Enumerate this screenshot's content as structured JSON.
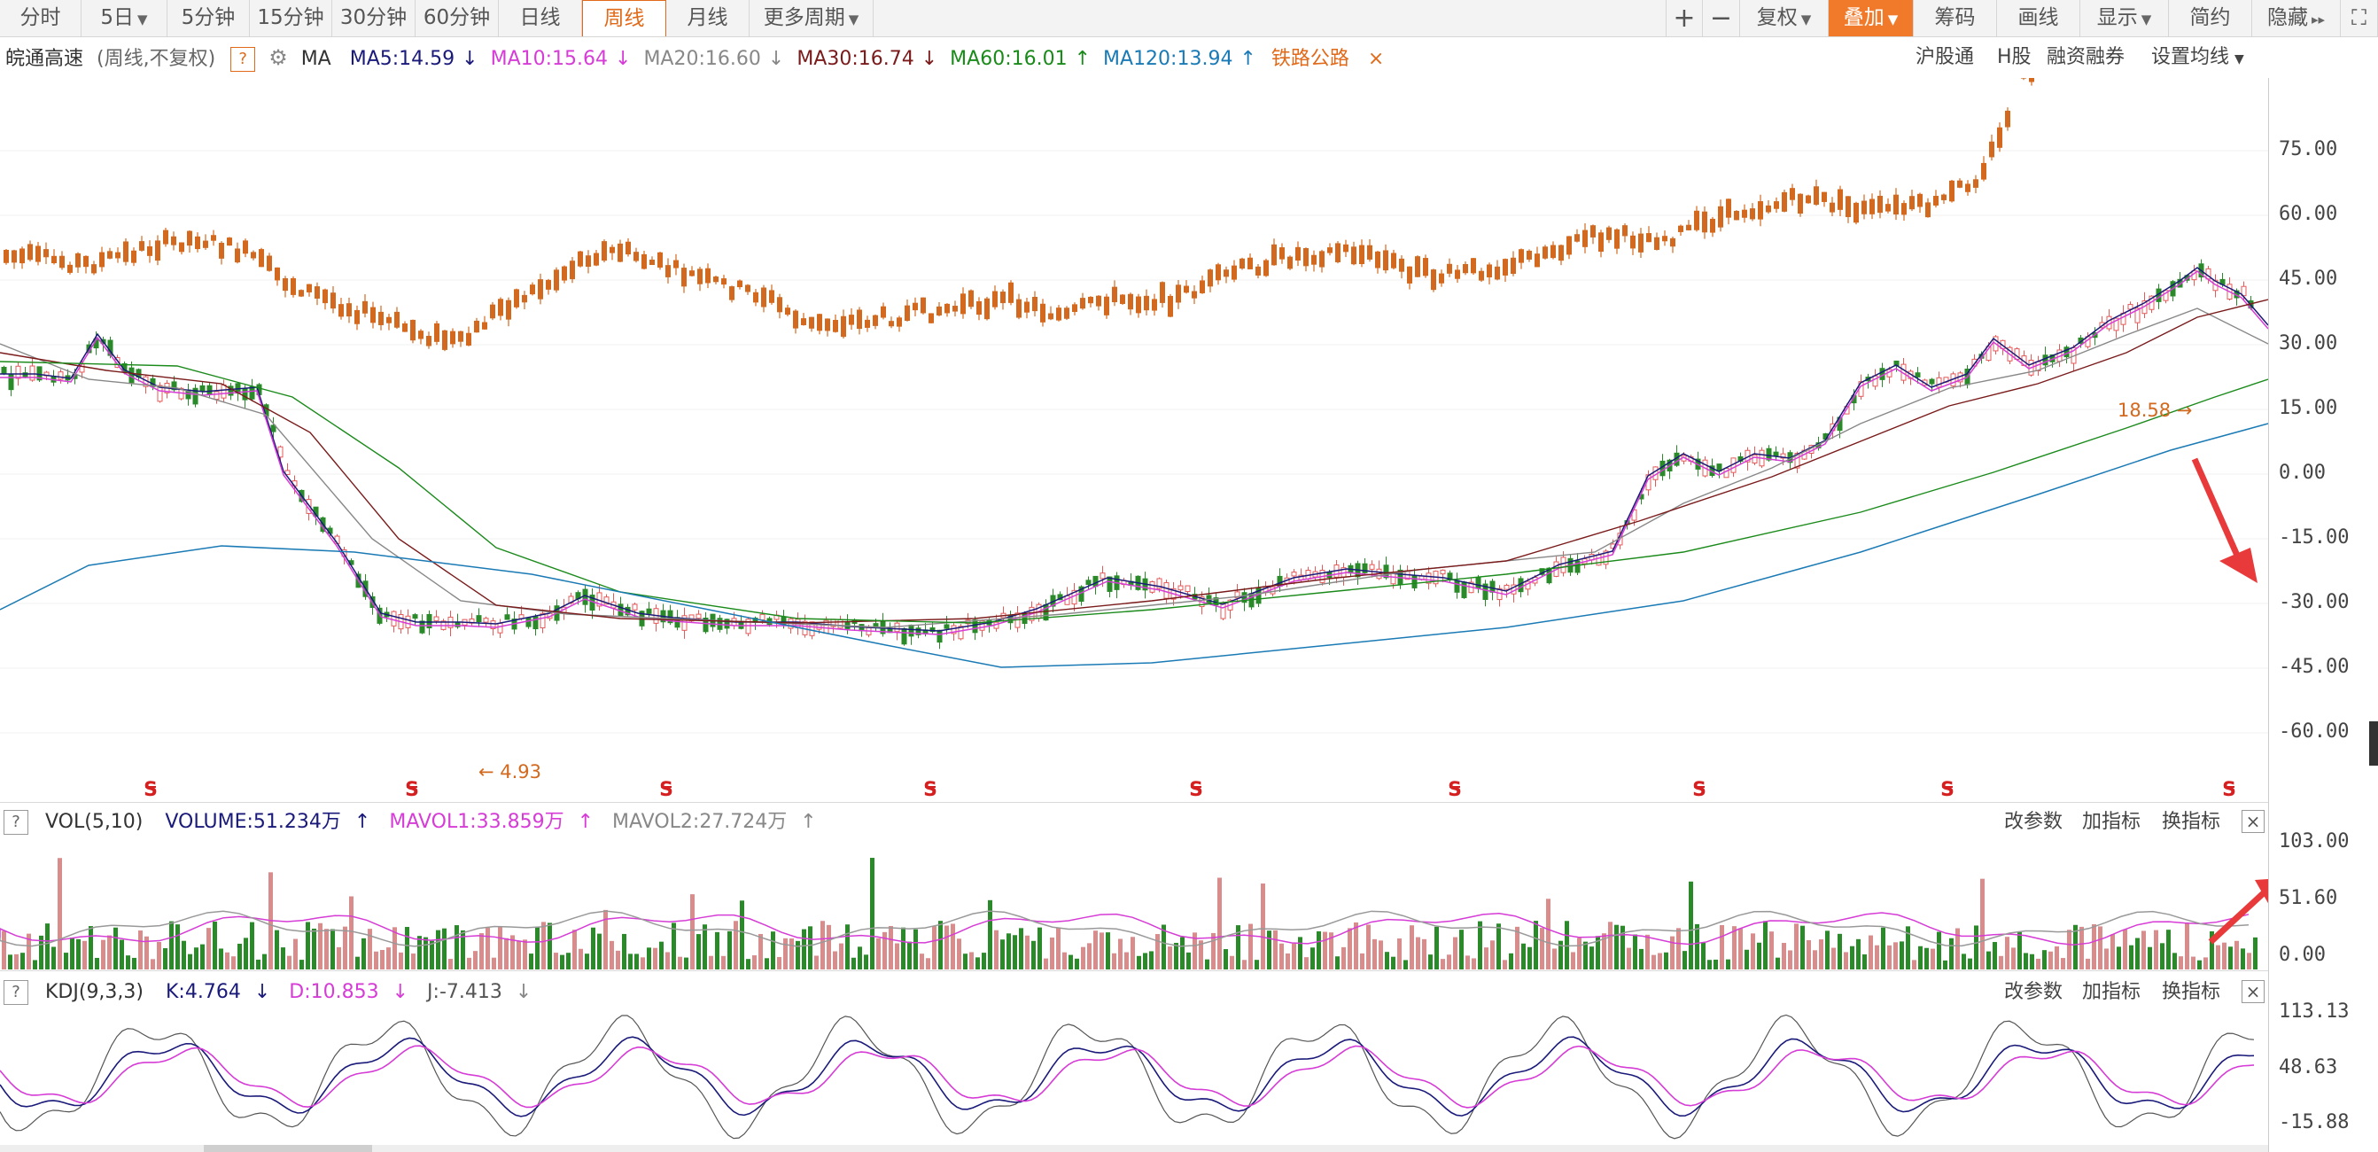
{
  "toolbar": {
    "tabs": [
      "分时",
      "5日",
      "5分钟",
      "15分钟",
      "30分钟",
      "60分钟",
      "日线",
      "周线",
      "月线",
      "更多周期"
    ],
    "active_tab": "周线",
    "right_buttons": [
      "复权",
      "叠加",
      "筹码",
      "画线",
      "显示",
      "简约",
      "隐藏"
    ],
    "plus_icon": "plus-icon",
    "minus_icon": "minus-icon",
    "fullscreen_icon": "fullscreen-icon"
  },
  "main_panel": {
    "stock_name": "皖通高速",
    "period_note": "(周线,不复权)",
    "help_label": "?",
    "ma_label": "MA",
    "ma_items": [
      {
        "label": "MA5:14.59",
        "color": "#1a1a7a",
        "arrow": "↓"
      },
      {
        "label": "MA10:15.64",
        "color": "#d63cd6",
        "arrow": "↓"
      },
      {
        "label": "MA20:16.60",
        "color": "#888888",
        "arrow": "↓"
      },
      {
        "label": "MA30:16.74",
        "color": "#7a1a1a",
        "arrow": "↓"
      },
      {
        "label": "MA60:16.01",
        "color": "#1a8a1a",
        "arrow": "↑"
      },
      {
        "label": "MA120:13.94",
        "color": "#1a7ab5",
        "arrow": "↑"
      }
    ],
    "overlay_label": "铁路公路",
    "overlay_close": "×",
    "right_links": [
      "沪股通",
      "H股",
      "融资融券",
      "设置均线"
    ],
    "y_axis": [
      "75.00",
      "60.00",
      "45.00",
      "30.00",
      "15.00",
      "0.00",
      "-15.00",
      "-30.00",
      "-45.00",
      "-60.00"
    ],
    "high_label": "18.58",
    "low_label": "4.93",
    "event_marker": "S"
  },
  "volume_panel": {
    "label": "VOL(5,10)",
    "volume": "VOLUME:51.234万",
    "mavol1": "MAVOL1:33.859万",
    "mavol2": "MAVOL2:27.724万",
    "arrows": [
      "↑",
      "↑",
      "↑"
    ],
    "buttons": [
      "改参数",
      "加指标",
      "换指标"
    ],
    "y_axis": [
      "103.00",
      "51.60",
      "0.00"
    ]
  },
  "kdj_panel": {
    "label": "KDJ(9,3,3)",
    "k": "K:4.764",
    "d": "D:10.853",
    "j": "J:-7.413",
    "arrows": [
      "↓",
      "↓",
      "↓"
    ],
    "buttons": [
      "改参数",
      "加指标",
      "换指标"
    ],
    "y_axis": [
      "113.13",
      "48.63",
      "-15.88"
    ]
  },
  "colors": {
    "accent": "#e06a1a",
    "up_candle": "#d2691e",
    "bar_up": "#d98c8c",
    "bar_down": "#2a8a2a",
    "annotation": "#e83a3a"
  }
}
